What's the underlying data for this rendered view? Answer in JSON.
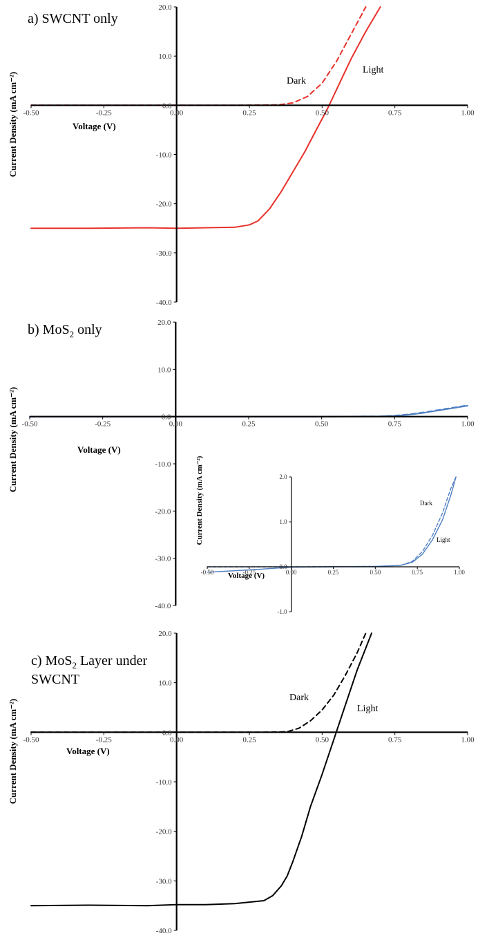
{
  "chart_data": [
    {
      "type": "line",
      "panel": "a",
      "title": "a) SWCNT only",
      "xlabel": "Voltage (V)",
      "ylabel": "Current Density (mA cm⁻²)",
      "xlim": [
        -0.5,
        1.0
      ],
      "ylim": [
        -40,
        20
      ],
      "xticks": [
        "-0.50",
        "-0.25",
        "0.00",
        "0.25",
        "0.50",
        "0.75",
        "1.00"
      ],
      "yticks": [
        "20.0",
        "10.0",
        "0.0",
        "-10.0",
        "-20.0",
        "-30.0",
        "-40.0"
      ],
      "series": [
        {
          "name": "Light",
          "color": "#e8302a",
          "style": "solid",
          "x": [
            -0.5,
            -0.3,
            -0.1,
            0.0,
            0.1,
            0.2,
            0.25,
            0.28,
            0.32,
            0.36,
            0.4,
            0.44,
            0.48,
            0.52,
            0.56,
            0.6,
            0.65,
            0.7
          ],
          "y": [
            -25.0,
            -25.0,
            -24.9,
            -25.0,
            -24.9,
            -24.8,
            -24.3,
            -23.5,
            -21.0,
            -17.5,
            -13.5,
            -9.5,
            -5.0,
            -0.5,
            4.5,
            9.5,
            15.0,
            20.0
          ]
        },
        {
          "name": "Dark",
          "color": "#e8302a",
          "style": "dashed",
          "x": [
            -0.5,
            -0.2,
            0.0,
            0.2,
            0.35,
            0.4,
            0.45,
            0.5,
            0.55,
            0.6,
            0.65
          ],
          "y": [
            0.0,
            0.0,
            0.0,
            0.0,
            0.1,
            0.5,
            1.8,
            4.5,
            9.0,
            14.5,
            20.0
          ]
        }
      ]
    },
    {
      "type": "line",
      "panel": "b",
      "title": "b) MoS",
      "title_sub": "2",
      "title_rest": " only",
      "xlabel": "Voltage (V)",
      "ylabel": "Current Density (mA cm⁻²)",
      "xlim": [
        -0.5,
        1.0
      ],
      "ylim": [
        -40,
        20
      ],
      "xticks": [
        "-0.50",
        "-0.25",
        "0.00",
        "0.25",
        "0.50",
        "0.75",
        "1.00"
      ],
      "yticks": [
        "20.0",
        "10.0",
        "0.0",
        "-10.0",
        "-20.0",
        "-30.0",
        "-40.0"
      ],
      "series": [
        {
          "name": "Light",
          "color": "#4f7fc3",
          "style": "solid",
          "x": [
            -0.5,
            0.0,
            0.5,
            0.7,
            0.75,
            0.8,
            0.85,
            0.9,
            0.95,
            1.0
          ],
          "y": [
            0.0,
            0.0,
            0.0,
            0.05,
            0.15,
            0.4,
            0.8,
            1.3,
            1.8,
            2.3
          ]
        },
        {
          "name": "Dark",
          "color": "#4f7fc3",
          "style": "dashed",
          "x": [
            -0.5,
            0.0,
            0.5,
            0.7,
            0.75,
            0.8,
            0.85,
            0.9,
            0.95,
            1.0
          ],
          "y": [
            0.0,
            0.0,
            0.0,
            0.05,
            0.2,
            0.5,
            0.9,
            1.4,
            1.9,
            2.4
          ]
        }
      ],
      "inset": {
        "xlabel": "Voltage (V)",
        "ylabel": "Current Density (mA cm⁻²)",
        "xlim": [
          -0.5,
          1.0
        ],
        "ylim": [
          -1.0,
          2.0
        ],
        "xticks": [
          "-0.50",
          "-0.25",
          "0.00",
          "0.25",
          "0.50",
          "0.75",
          "1.00"
        ],
        "yticks": [
          "2.0",
          "1.0",
          "0.0",
          "-1.0"
        ],
        "series": [
          {
            "name": "Light",
            "color": "#4f7fc3",
            "style": "solid",
            "x": [
              -0.5,
              -0.25,
              0.0,
              0.2,
              0.5,
              0.65,
              0.72,
              0.78,
              0.84,
              0.9,
              0.95,
              0.98
            ],
            "y": [
              -0.12,
              -0.07,
              -0.01,
              0.0,
              0.01,
              0.03,
              0.1,
              0.28,
              0.6,
              1.05,
              1.6,
              2.0
            ]
          },
          {
            "name": "Dark",
            "color": "#4f7fc3",
            "style": "dashed",
            "x": [
              -0.5,
              0.0,
              0.5,
              0.65,
              0.72,
              0.78,
              0.84,
              0.9,
              0.95,
              0.98
            ],
            "y": [
              0.0,
              0.0,
              0.01,
              0.03,
              0.12,
              0.34,
              0.7,
              1.2,
              1.75,
              2.0
            ]
          }
        ]
      }
    },
    {
      "type": "line",
      "panel": "c",
      "title": "c) MoS",
      "title_sub": "2",
      "title_rest": " Layer under",
      "title_line2": "SWCNT",
      "xlabel": "Voltage (V)",
      "ylabel": "Current Density (mA cm⁻²)",
      "xlim": [
        -0.5,
        1.0
      ],
      "ylim": [
        -40,
        20
      ],
      "xticks": [
        "-0.50",
        "-0.25",
        "0.00",
        "0.25",
        "0.50",
        "0.75",
        "1.00"
      ],
      "yticks": [
        "20.0",
        "10.0",
        "0.0",
        "-10.0",
        "-20.0",
        "-30.0",
        "-40.0"
      ],
      "series": [
        {
          "name": "Light",
          "color": "#000000",
          "style": "solid",
          "x": [
            -0.5,
            -0.3,
            -0.1,
            0.0,
            0.1,
            0.2,
            0.3,
            0.33,
            0.36,
            0.38,
            0.4,
            0.43,
            0.46,
            0.5,
            0.54,
            0.58,
            0.62,
            0.67
          ],
          "y": [
            -35.0,
            -34.9,
            -35.0,
            -34.8,
            -34.8,
            -34.6,
            -34.0,
            -33.0,
            -31.0,
            -29.0,
            -26.0,
            -21.0,
            -15.0,
            -8.5,
            -1.5,
            5.5,
            12.5,
            20.0
          ]
        },
        {
          "name": "Dark",
          "color": "#000000",
          "style": "dashed",
          "x": [
            -0.5,
            0.0,
            0.3,
            0.38,
            0.42,
            0.46,
            0.5,
            0.54,
            0.58,
            0.62,
            0.65
          ],
          "y": [
            0.0,
            0.0,
            0.0,
            0.1,
            0.8,
            2.3,
            4.5,
            7.5,
            11.5,
            16.0,
            20.0
          ]
        }
      ]
    }
  ]
}
